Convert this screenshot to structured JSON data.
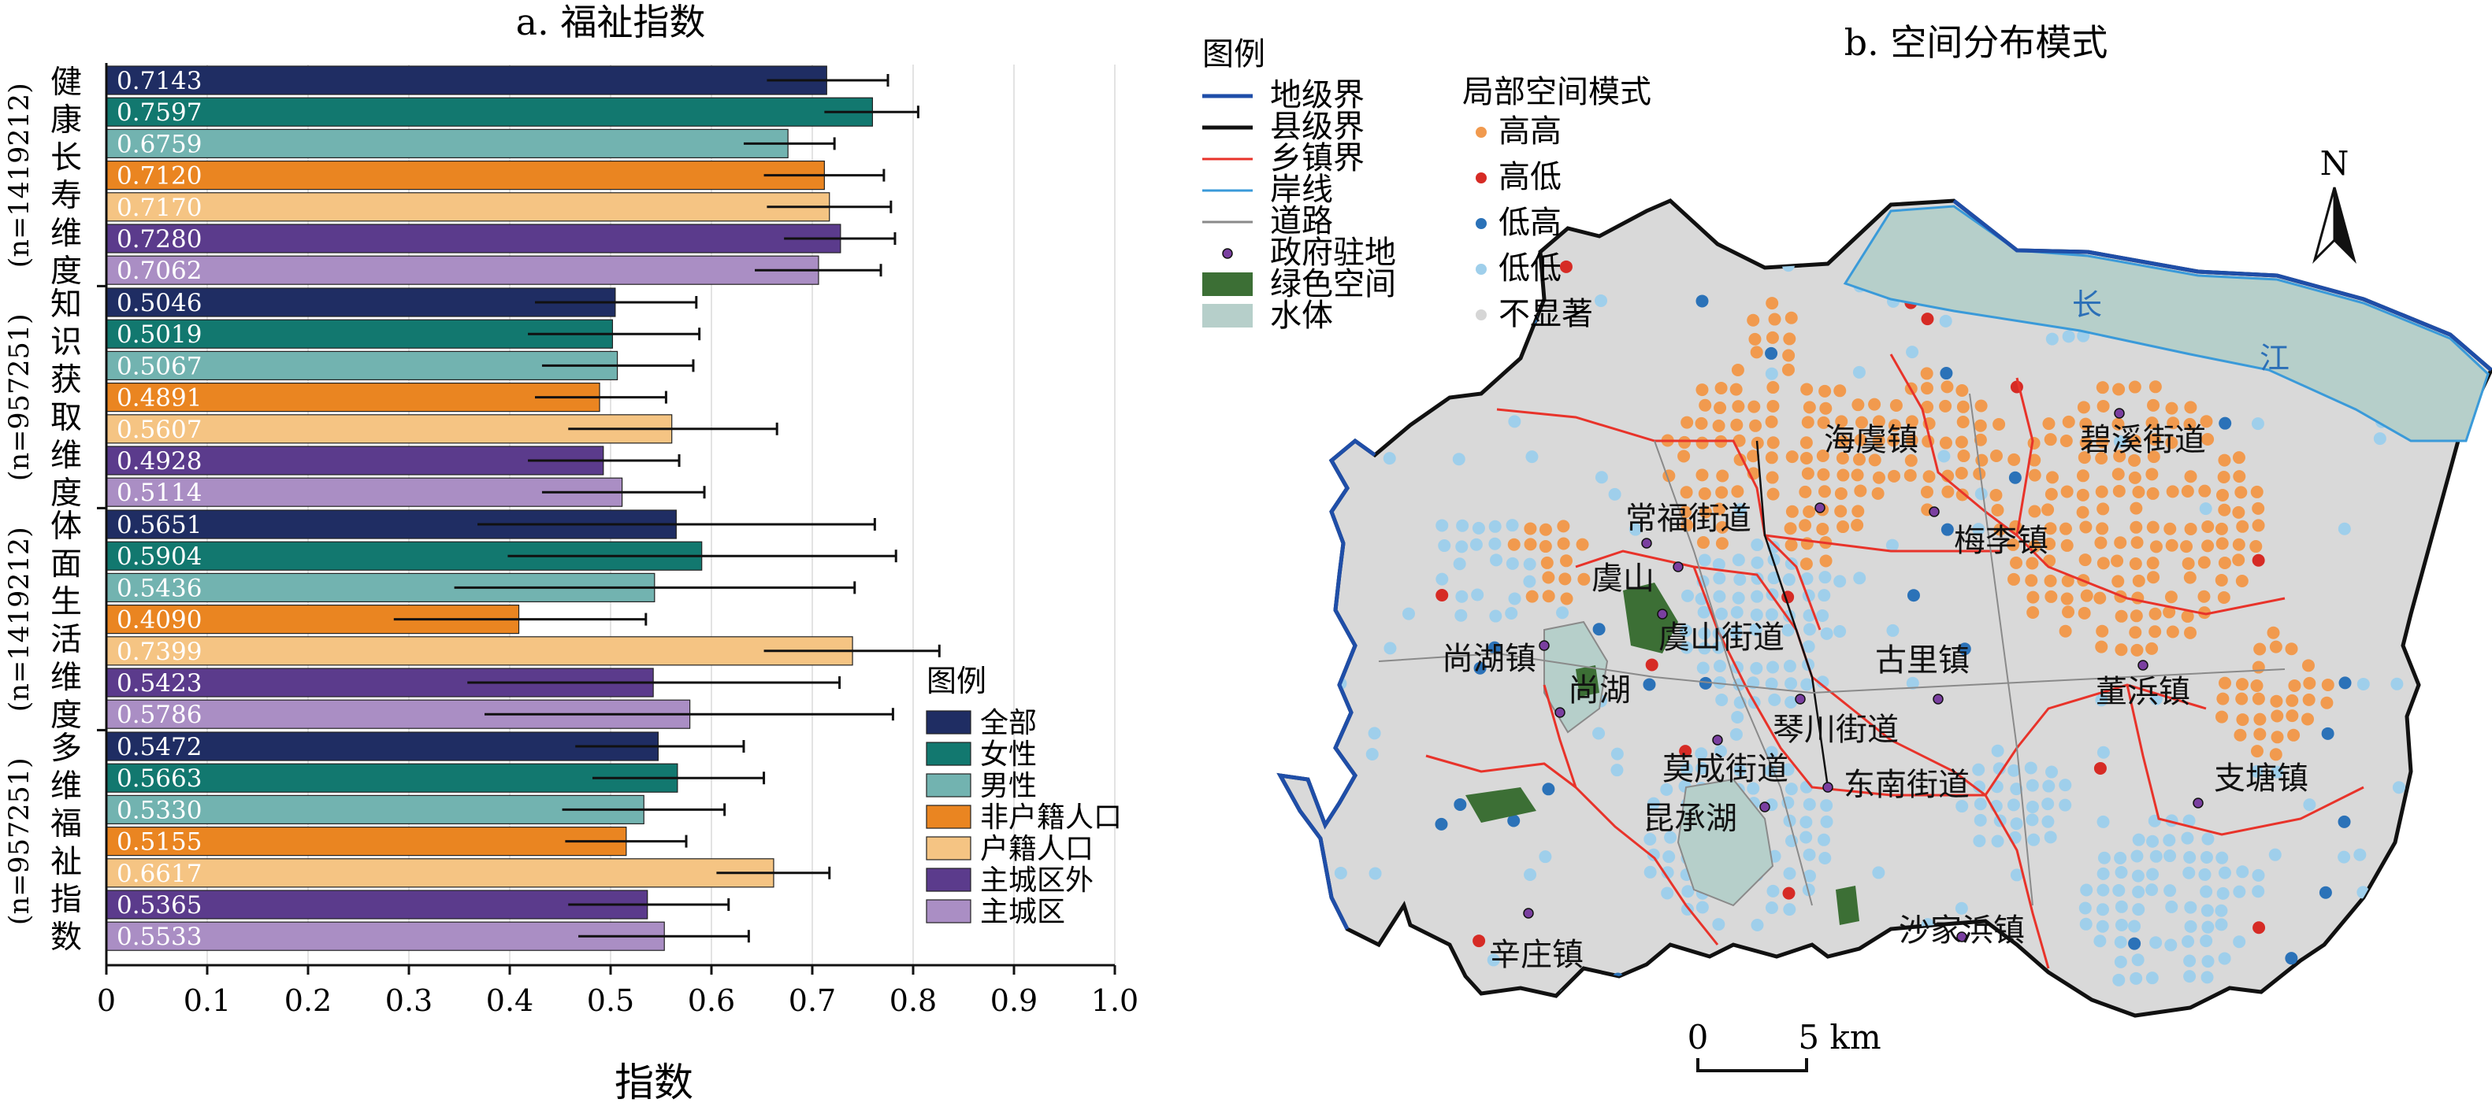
{
  "chart_data": [
    {
      "type": "bar",
      "orientation": "horizontal",
      "title": "a. 福祉指数",
      "xlabel": "指数",
      "xlim": [
        0,
        1.0
      ],
      "xticks": [
        "0",
        "0.1",
        "0.2",
        "0.3",
        "0.4",
        "0.5",
        "0.6",
        "0.7",
        "0.8",
        "0.9",
        "1.0"
      ],
      "grid": "vertical",
      "legend_title": "图例",
      "legend_position": "lower-right",
      "series_labels": [
        "全部",
        "女性",
        "男性",
        "非户籍人口",
        "户籍人口",
        "主城区外",
        "主城区"
      ],
      "colors": [
        "#1f2d63",
        "#12786f",
        "#72b3b0",
        "#ea8521",
        "#f5c483",
        "#5b3b8c",
        "#aa8ec4"
      ],
      "groups": [
        {
          "label": "健康长寿维度",
          "n_label": "(n=1419212)",
          "values": [
            0.7143,
            0.7597,
            0.6759,
            0.712,
            0.717,
            0.728,
            0.7062
          ],
          "value_labels": [
            "0.7143",
            "0.7597",
            "0.6759",
            "0.7120",
            "0.7170",
            "0.7280",
            "0.7062"
          ],
          "error_low": [
            0.655,
            0.712,
            0.632,
            0.652,
            0.655,
            0.672,
            0.643
          ],
          "error_high": [
            0.775,
            0.805,
            0.722,
            0.771,
            0.778,
            0.782,
            0.768
          ]
        },
        {
          "label": "知识获取维度",
          "n_label": "(n=957251)",
          "values": [
            0.5046,
            0.5019,
            0.5067,
            0.4891,
            0.5607,
            0.4928,
            0.5114
          ],
          "value_labels": [
            "0.5046",
            "0.5019",
            "0.5067",
            "0.4891",
            "0.5607",
            "0.4928",
            "0.5114"
          ],
          "error_low": [
            0.425,
            0.418,
            0.432,
            0.425,
            0.458,
            0.418,
            0.432
          ],
          "error_high": [
            0.585,
            0.588,
            0.582,
            0.555,
            0.665,
            0.568,
            0.593
          ]
        },
        {
          "label": "体面生活维度",
          "n_label": "(n=1419212)",
          "values": [
            0.5651,
            0.5904,
            0.5436,
            0.409,
            0.7399,
            0.5423,
            0.5786
          ],
          "value_labels": [
            "0.5651",
            "0.5904",
            "0.5436",
            "0.4090",
            "0.7399",
            "0.5423",
            "0.5786"
          ],
          "error_low": [
            0.368,
            0.398,
            0.345,
            0.285,
            0.652,
            0.358,
            0.375
          ],
          "error_high": [
            0.762,
            0.783,
            0.742,
            0.535,
            0.826,
            0.727,
            0.78
          ]
        },
        {
          "label": "多维福祉指数",
          "n_label": "(n=957251)",
          "values": [
            0.5472,
            0.5663,
            0.533,
            0.5155,
            0.6617,
            0.5365,
            0.5533
          ],
          "value_labels": [
            "0.5472",
            "0.5663",
            "0.5330",
            "0.5155",
            "0.6617",
            "0.5365",
            "0.5533"
          ],
          "error_low": [
            0.465,
            0.482,
            0.452,
            0.455,
            0.605,
            0.458,
            0.468
          ],
          "error_high": [
            0.632,
            0.652,
            0.613,
            0.575,
            0.717,
            0.617,
            0.637
          ]
        }
      ]
    },
    {
      "type": "map",
      "title": "b. 空间分布模式",
      "legend": {
        "title": "图例",
        "items": [
          {
            "label": "地级界",
            "symbol": "line",
            "color": "#1f4ea8"
          },
          {
            "label": "县级界",
            "symbol": "line",
            "color": "#111111"
          },
          {
            "label": "乡镇界",
            "symbol": "line",
            "color": "#e8332a"
          },
          {
            "label": "岸线",
            "symbol": "line",
            "color": "#3a9ad9"
          },
          {
            "label": "道路",
            "symbol": "line",
            "color": "#8a8a8a"
          },
          {
            "label": "政府驻地",
            "symbol": "point",
            "color": "#7a3fa0"
          },
          {
            "label": "绿色空间",
            "symbol": "patch",
            "color": "#3c6f35"
          },
          {
            "label": "水体",
            "symbol": "patch",
            "color": "#b6cfca"
          }
        ]
      },
      "cluster_legend": {
        "title": "局部空间模式",
        "items": [
          {
            "label": "高高",
            "color": "#f19a4e"
          },
          {
            "label": "高低",
            "color": "#d62b25"
          },
          {
            "label": "低高",
            "color": "#2b72b8"
          },
          {
            "label": "低低",
            "color": "#9fcfeb"
          },
          {
            "label": "不显著",
            "color": "#d6d6d6"
          }
        ]
      },
      "place_labels": [
        "海虞镇",
        "碧溪街道",
        "常福街道",
        "梅李镇",
        "虞山",
        "虞山街道",
        "尚湖镇",
        "尚湖",
        "古里镇",
        "董浜镇",
        "琴川街道",
        "莫成街道",
        "东南街道",
        "支塘镇",
        "昆承湖",
        "沙家浜镇",
        "辛庄镇"
      ],
      "river_labels": [
        "长",
        "江"
      ],
      "north_label": "N",
      "scale_bar": {
        "start": "0",
        "end": "5 km"
      }
    }
  ]
}
